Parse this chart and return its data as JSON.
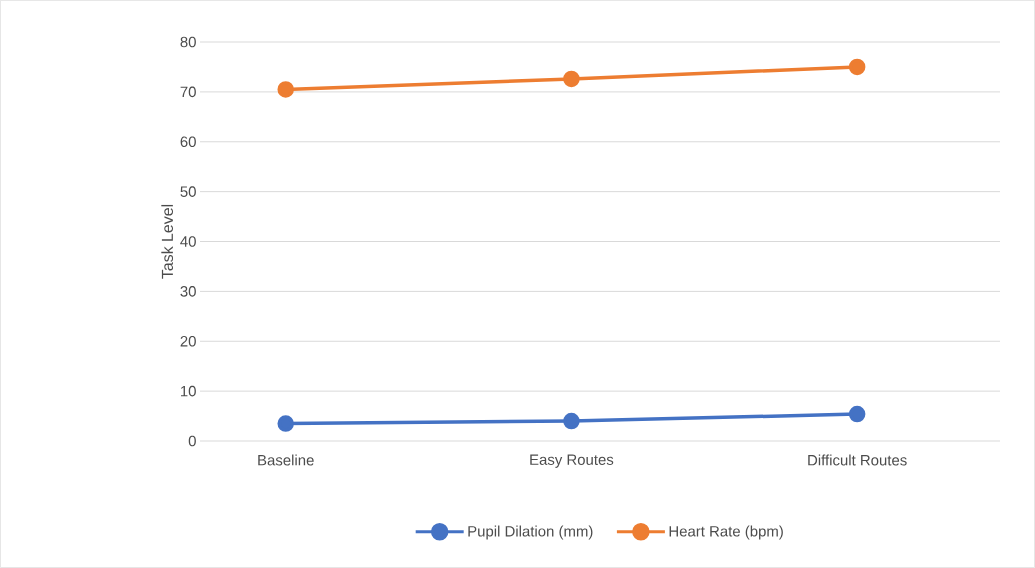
{
  "chart_data": {
    "type": "line",
    "ylabel": "Task Level",
    "categories": [
      "Baseline",
      "Easy Routes",
      "Difficult Routes"
    ],
    "series": [
      {
        "name": "Pupil Dilation (mm)",
        "color": "#4472c4",
        "values": [
          3.5,
          4.0,
          5.4
        ]
      },
      {
        "name": "Heart Rate (bpm)",
        "color": "#ed7d31",
        "values": [
          70.5,
          72.6,
          75.0
        ]
      }
    ],
    "ylim": [
      0,
      80
    ],
    "yticks": [
      0,
      10,
      20,
      30,
      40,
      50,
      60,
      70,
      80
    ],
    "grid": "y",
    "legend": "bottom",
    "marker": "circle",
    "line_style": "solid"
  }
}
